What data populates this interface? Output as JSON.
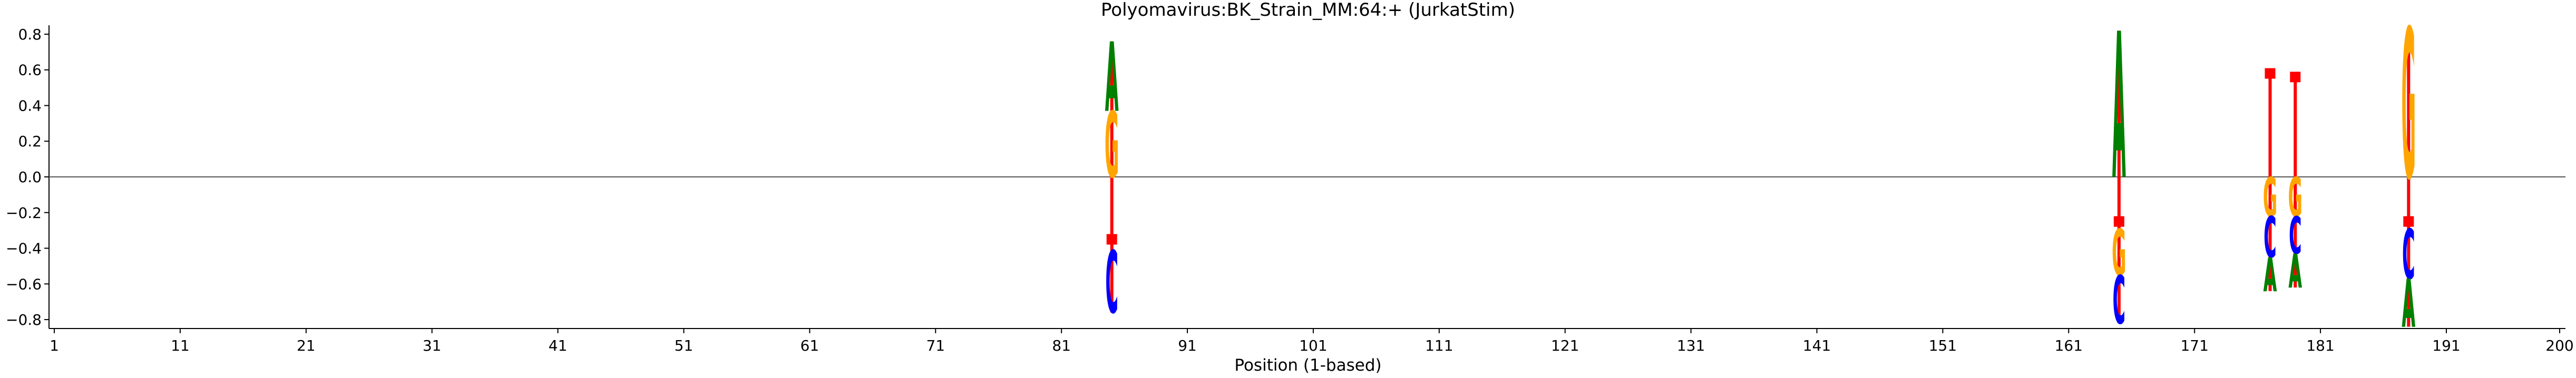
{
  "chart_data": {
    "type": "sequence-logo",
    "title": "Polyomavirus:BK_Strain_MM:64:+  (JurkatStim)",
    "xlabel": "Position (1-based)",
    "ylabel": "",
    "xlim": [
      1,
      200
    ],
    "ylim": [
      -0.85,
      0.85
    ],
    "xticks": [
      1,
      11,
      21,
      31,
      41,
      51,
      61,
      71,
      81,
      91,
      101,
      111,
      121,
      131,
      141,
      151,
      161,
      171,
      181,
      191,
      200
    ],
    "yticks": [
      -0.8,
      -0.6,
      -0.4,
      -0.2,
      0.0,
      0.2,
      0.4,
      0.6,
      0.8
    ],
    "ytick_labels": [
      "−0.8",
      "−0.6",
      "−0.4",
      "−0.2",
      "0.0",
      "0.2",
      "0.4",
      "0.6",
      "0.8"
    ],
    "colors": {
      "A": "#008000",
      "C": "#0000ff",
      "G": "#ffa500",
      "T": "#ff0000",
      "line": "#ff0000"
    },
    "positions": [
      {
        "x": 85,
        "marker": -0.35,
        "letters": [
          {
            "base": "G",
            "y0": 0.0,
            "y1": 0.37
          },
          {
            "base": "A",
            "y0": 0.37,
            "y1": 0.76
          },
          {
            "base": "C",
            "y0": -0.41,
            "y1": -0.76
          }
        ]
      },
      {
        "x": 165,
        "marker": -0.25,
        "letters": [
          {
            "base": "A",
            "y0": 0.0,
            "y1": 0.82
          },
          {
            "base": "G",
            "y0": -0.29,
            "y1": -0.55
          },
          {
            "base": "C",
            "y0": -0.55,
            "y1": -0.82
          }
        ]
      },
      {
        "x": 177,
        "marker": 0.58,
        "letters": [
          {
            "base": "G",
            "y0": 0.0,
            "y1": -0.22
          },
          {
            "base": "C",
            "y0": -0.22,
            "y1": -0.45
          },
          {
            "base": "A",
            "y0": -0.45,
            "y1": -0.64
          }
        ]
      },
      {
        "x": 179,
        "marker": 0.56,
        "letters": [
          {
            "base": "G",
            "y0": 0.0,
            "y1": -0.22
          },
          {
            "base": "C",
            "y0": -0.22,
            "y1": -0.43
          },
          {
            "base": "A",
            "y0": -0.43,
            "y1": -0.62
          }
        ]
      },
      {
        "x": 188,
        "marker": -0.25,
        "letters": [
          {
            "base": "G",
            "y0": 0.0,
            "y1": 0.84
          },
          {
            "base": "C",
            "y0": -0.29,
            "y1": -0.57
          },
          {
            "base": "A",
            "y0": -0.57,
            "y1": -0.84
          }
        ]
      }
    ]
  }
}
